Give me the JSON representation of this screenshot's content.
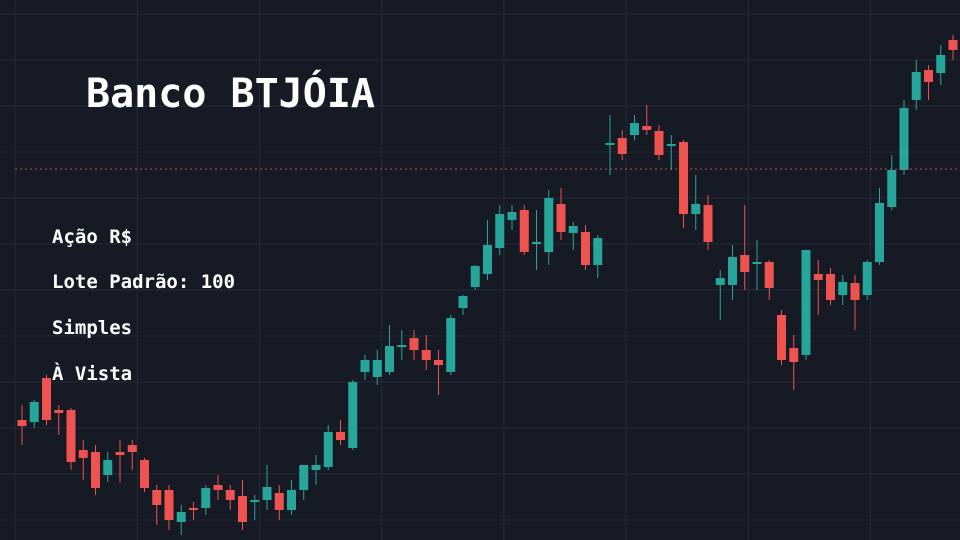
{
  "header": {
    "title": "Banco BTJÓIA",
    "lines": [
      "Ação R$",
      "Lote Padrão: 100",
      "Simples",
      "À Vista"
    ]
  },
  "chart_data": {
    "type": "candlestick",
    "ylim": [
      0,
      540
    ],
    "up_color": "#26a69a",
    "down_color": "#ef5350",
    "grid": true,
    "price_line": 371,
    "price_line_color": "#ef5350",
    "open": [
      120,
      118,
      162,
      130,
      130,
      90,
      88,
      65,
      88,
      95,
      80,
      50,
      50,
      18,
      32,
      32,
      55,
      50,
      44,
      38,
      40,
      47,
      30,
      50,
      70,
      73,
      108,
      92,
      168,
      163,
      168,
      193,
      202,
      190,
      180,
      168,
      232,
      253,
      266,
      292,
      320,
      330,
      296,
      288,
      336,
      307,
      308,
      275,
      395,
      402,
      405,
      414,
      409,
      394,
      398,
      326,
      335,
      255,
      255,
      285,
      277,
      278,
      225,
      192,
      185,
      266,
      266,
      245,
      257,
      245,
      278,
      333,
      370,
      440,
      470,
      467,
      500
    ],
    "high": [
      135,
      140,
      165,
      135,
      132,
      100,
      95,
      88,
      100,
      100,
      82,
      55,
      55,
      35,
      38,
      55,
      65,
      55,
      60,
      45,
      75,
      55,
      60,
      75,
      85,
      115,
      120,
      160,
      185,
      190,
      215,
      210,
      210,
      205,
      190,
      225,
      245,
      275,
      320,
      335,
      335,
      335,
      330,
      350,
      352,
      318,
      315,
      305,
      425,
      410,
      425,
      435,
      415,
      405,
      400,
      365,
      345,
      270,
      295,
      335,
      300,
      280,
      230,
      205,
      290,
      280,
      272,
      265,
      265,
      280,
      352,
      385,
      440,
      480,
      475,
      495,
      505
    ],
    "low": [
      95,
      112,
      115,
      105,
      70,
      60,
      45,
      58,
      58,
      70,
      48,
      15,
      10,
      5,
      20,
      25,
      40,
      30,
      10,
      20,
      30,
      20,
      25,
      40,
      55,
      70,
      95,
      90,
      160,
      155,
      165,
      180,
      180,
      170,
      145,
      165,
      225,
      250,
      260,
      285,
      310,
      285,
      270,
      275,
      300,
      290,
      270,
      262,
      365,
      380,
      400,
      405,
      380,
      370,
      312,
      310,
      290,
      220,
      240,
      250,
      250,
      240,
      175,
      150,
      180,
      225,
      235,
      235,
      210,
      240,
      275,
      330,
      365,
      430,
      440,
      455,
      480
    ],
    "close": [
      114,
      138,
      120,
      127,
      78,
      82,
      52,
      80,
      85,
      88,
      52,
      35,
      20,
      28,
      30,
      52,
      50,
      40,
      18,
      40,
      53,
      30,
      50,
      75,
      75,
      108,
      100,
      158,
      180,
      180,
      194,
      195,
      190,
      180,
      175,
      222,
      244,
      274,
      295,
      326,
      328,
      288,
      298,
      342,
      308,
      314,
      275,
      302,
      397,
      386,
      417,
      410,
      385,
      396,
      326,
      336,
      298,
      262,
      283,
      268,
      278,
      252,
      180,
      178,
      290,
      260,
      240,
      258,
      240,
      278,
      337,
      370,
      432,
      468,
      458,
      485,
      490
    ]
  }
}
